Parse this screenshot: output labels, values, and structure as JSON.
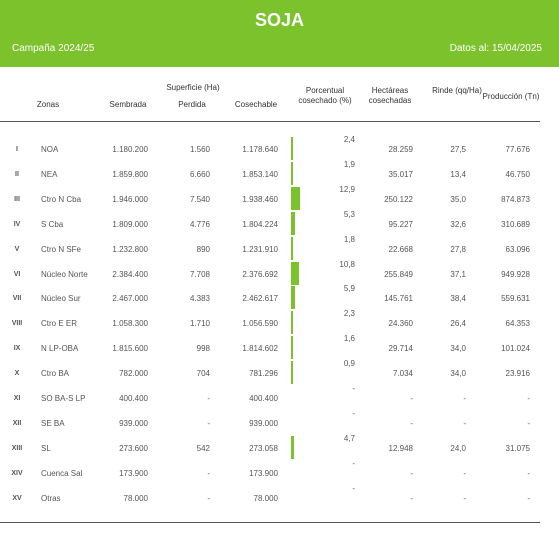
{
  "header": {
    "title": "SOJA",
    "campaign": "Campaña 2024/25",
    "date": "Datos al: 15/04/2025"
  },
  "table": {
    "group_header": "Superficie (Ha)",
    "columns": [
      "Zonas",
      "Sembrada",
      "Perdida",
      "Cosechable",
      "Porcentual cosechado (%)",
      "Hectáreas cosechadas",
      "Rinde (qq/Ha)",
      "Producción (Tn)"
    ],
    "rows": [
      [
        "I",
        "NOA",
        "1.180.200",
        "1.560",
        "1.178.640",
        "2,4",
        "28.259",
        "27,5",
        "77.676"
      ],
      [
        "II",
        "NEA",
        "1.859.800",
        "6.660",
        "1.853.140",
        "1,9",
        "35.017",
        "13,4",
        "46.750"
      ],
      [
        "III",
        "Ctro N Cba",
        "1.946.000",
        "7.540",
        "1.938.460",
        "12,9",
        "250.122",
        "35,0",
        "874.873"
      ],
      [
        "IV",
        "S Cba",
        "1.809.000",
        "4.776",
        "1.804.224",
        "5,3",
        "95.227",
        "32,6",
        "310.689"
      ],
      [
        "V",
        "Ctro N SFe",
        "1.232.800",
        "890",
        "1.231.910",
        "1,8",
        "22.668",
        "27,8",
        "63.096"
      ],
      [
        "VI",
        "Núcleo Norte",
        "2.384.400",
        "7.708",
        "2.376.692",
        "10,8",
        "255.849",
        "37,1",
        "949.928"
      ],
      [
        "VII",
        "Núcleo Sur",
        "2.467.000",
        "4.383",
        "2.462.617",
        "5,9",
        "145.761",
        "38,4",
        "559.631"
      ],
      [
        "VIII",
        "Ctro E ER",
        "1.058.300",
        "1.710",
        "1.056.590",
        "2,3",
        "24.360",
        "26,4",
        "64.353"
      ],
      [
        "IX",
        "N LP-OBA",
        "1.815.600",
        "998",
        "1.814.602",
        "1,6",
        "29.714",
        "34,0",
        "101.024"
      ],
      [
        "X",
        "Ctro BA",
        "782.000",
        "704",
        "781.296",
        "0,9",
        "7.034",
        "34,0",
        "23.916"
      ],
      [
        "XI",
        "SO BA-S LP",
        "400.400",
        "-",
        "400.400",
        "-",
        "-",
        "-",
        "-"
      ],
      [
        "XII",
        "SE BA",
        "939.000",
        "-",
        "939.000",
        "-",
        "-",
        "-",
        "-"
      ],
      [
        "XIII",
        "SL",
        "273.600",
        "542",
        "273.058",
        "4,7",
        "12.948",
        "24,0",
        "31.075"
      ],
      [
        "XIV",
        "Cuenca Sal",
        "173.900",
        "-",
        "173.900",
        "-",
        "-",
        "-",
        "-"
      ],
      [
        "XV",
        "Otras",
        "78.000",
        "-",
        "78.000",
        "-",
        "-",
        "-",
        "-"
      ]
    ]
  }
}
